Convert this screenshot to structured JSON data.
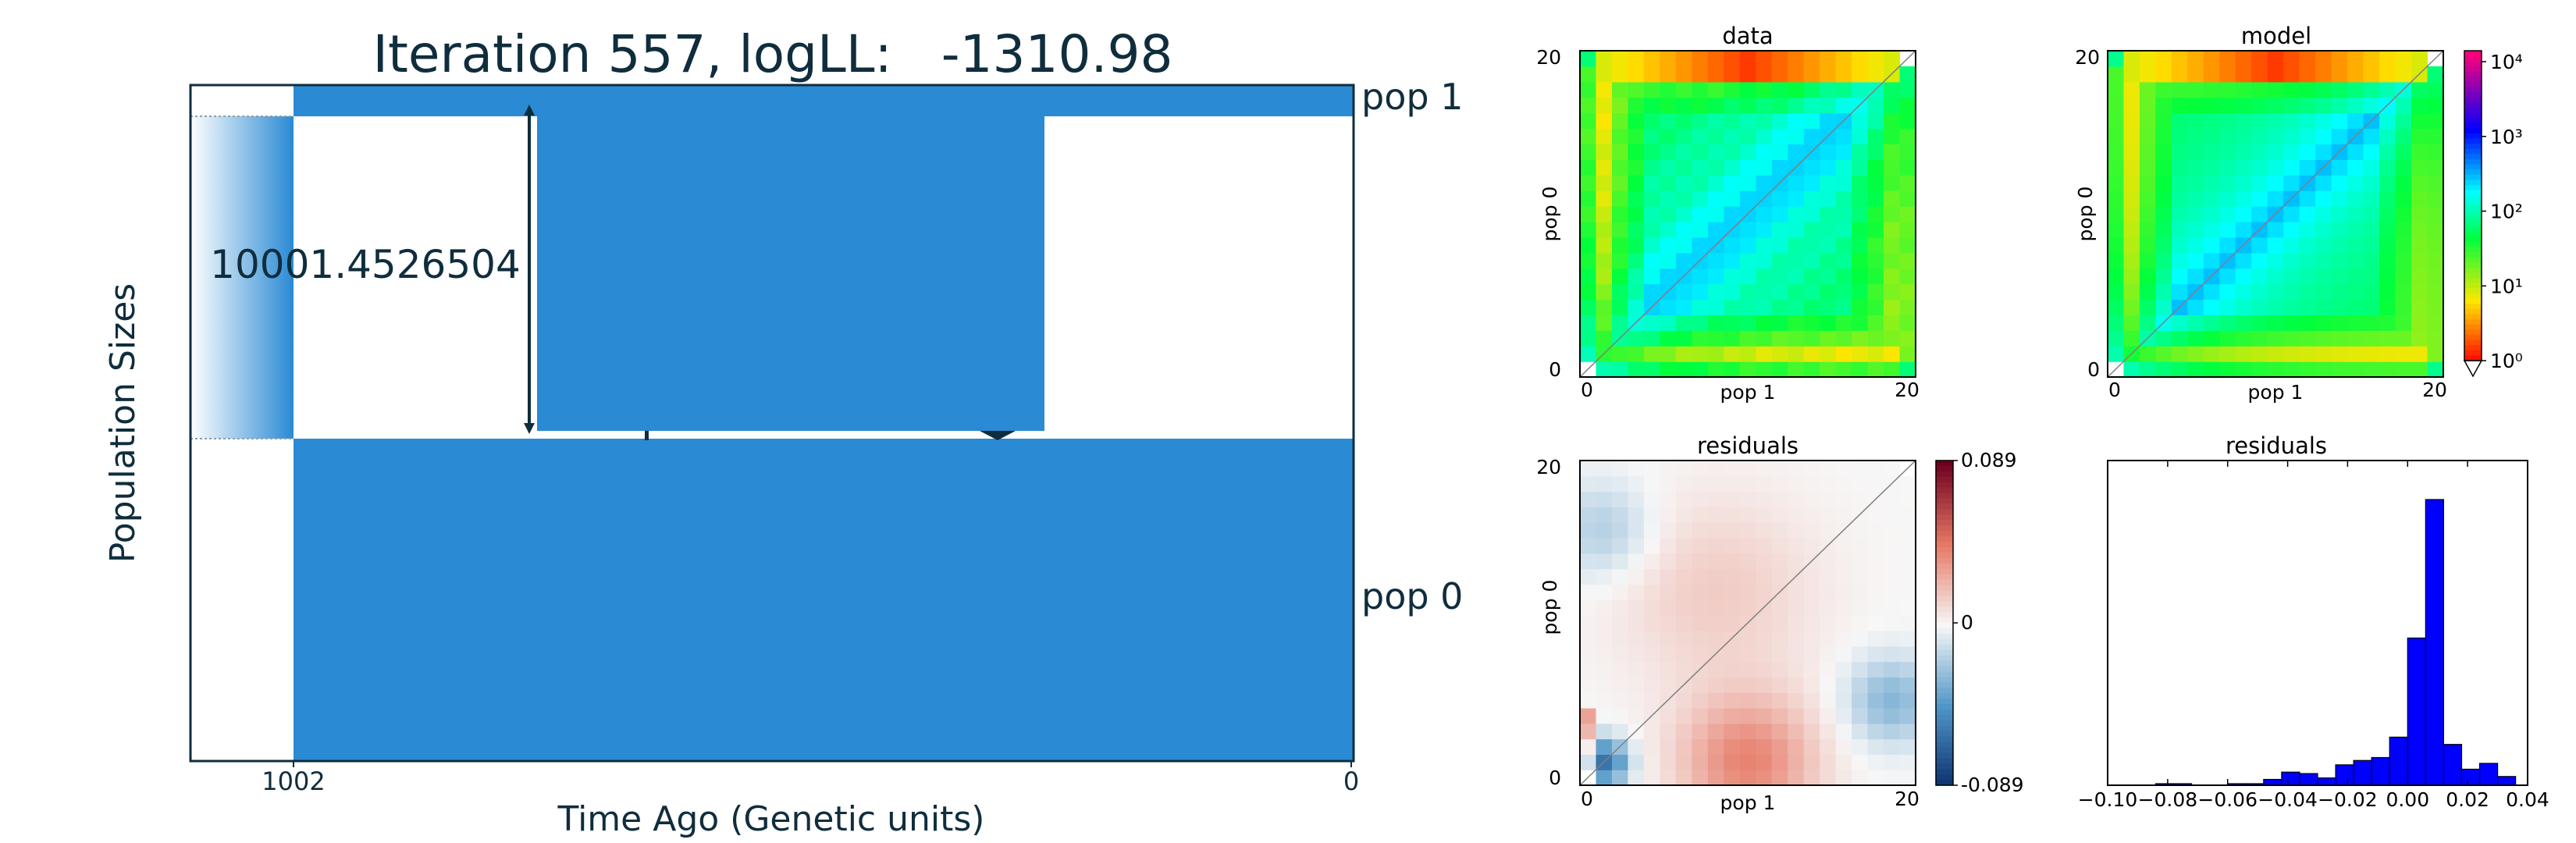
{
  "title": "Iteration 557, logLL:   -1310.98",
  "colors": {
    "pop_fill": "#2a8ad4",
    "dark": "#0f2d3d",
    "hist_bar": "#0000ff"
  },
  "chart_data": [
    {
      "type": "area",
      "panel": "demography",
      "title": "Iteration 557, logLL:   -1310.98",
      "xlabel": "Time Ago (Genetic units)",
      "ylabel": "Population Sizes",
      "x_ticks": [
        "1002",
        "0"
      ],
      "series": [
        {
          "name": "pop 1"
        },
        {
          "name": "pop 0"
        }
      ],
      "annotation": "10001.4526504"
    },
    {
      "type": "heatmap",
      "panel": "data",
      "title": "data",
      "xlabel": "pop 1",
      "ylabel": "pop 0",
      "x_ticks": [
        "0",
        "20"
      ],
      "y_ticks": [
        "0",
        "20"
      ],
      "grid_size": 21,
      "scale": "log"
    },
    {
      "type": "heatmap",
      "panel": "model",
      "title": "model",
      "xlabel": "pop 1",
      "ylabel": "pop 0",
      "x_ticks": [
        "0",
        "20"
      ],
      "y_ticks": [
        "0",
        "20"
      ],
      "grid_size": 21,
      "scale": "log",
      "colorbar_ticks": [
        "10⁰",
        "10¹",
        "10²",
        "10³",
        "10⁴"
      ]
    },
    {
      "type": "heatmap",
      "panel": "residuals",
      "title": "residuals",
      "xlabel": "pop 1",
      "ylabel": "pop 0",
      "x_ticks": [
        "0",
        "20"
      ],
      "y_ticks": [
        "0",
        "20"
      ],
      "grid_size": 21,
      "colorbar_ticks": [
        "0.089",
        "0",
        "-0.089"
      ],
      "range": [
        -0.089,
        0.089
      ]
    },
    {
      "type": "bar",
      "panel": "residual_histogram",
      "title": "residuals",
      "x_ticks": [
        "−0.10",
        "−0.08",
        "−0.06",
        "−0.04",
        "−0.02",
        "0.00",
        "0.02",
        "0.04"
      ],
      "xlim": [
        -0.1,
        0.04
      ],
      "bin_edges": [
        -0.084,
        -0.078,
        -0.072,
        -0.066,
        -0.06,
        -0.054,
        -0.048,
        -0.042,
        -0.036,
        -0.03,
        -0.024,
        -0.018,
        -0.012,
        -0.006,
        0.0,
        0.006,
        0.012,
        0.018,
        0.024,
        0.03,
        0.036
      ],
      "counts": [
        1,
        1,
        0,
        0,
        1,
        1,
        4,
        9,
        8,
        5,
        14,
        17,
        19,
        33,
        101,
        196,
        28,
        11,
        15,
        6
      ]
    }
  ]
}
